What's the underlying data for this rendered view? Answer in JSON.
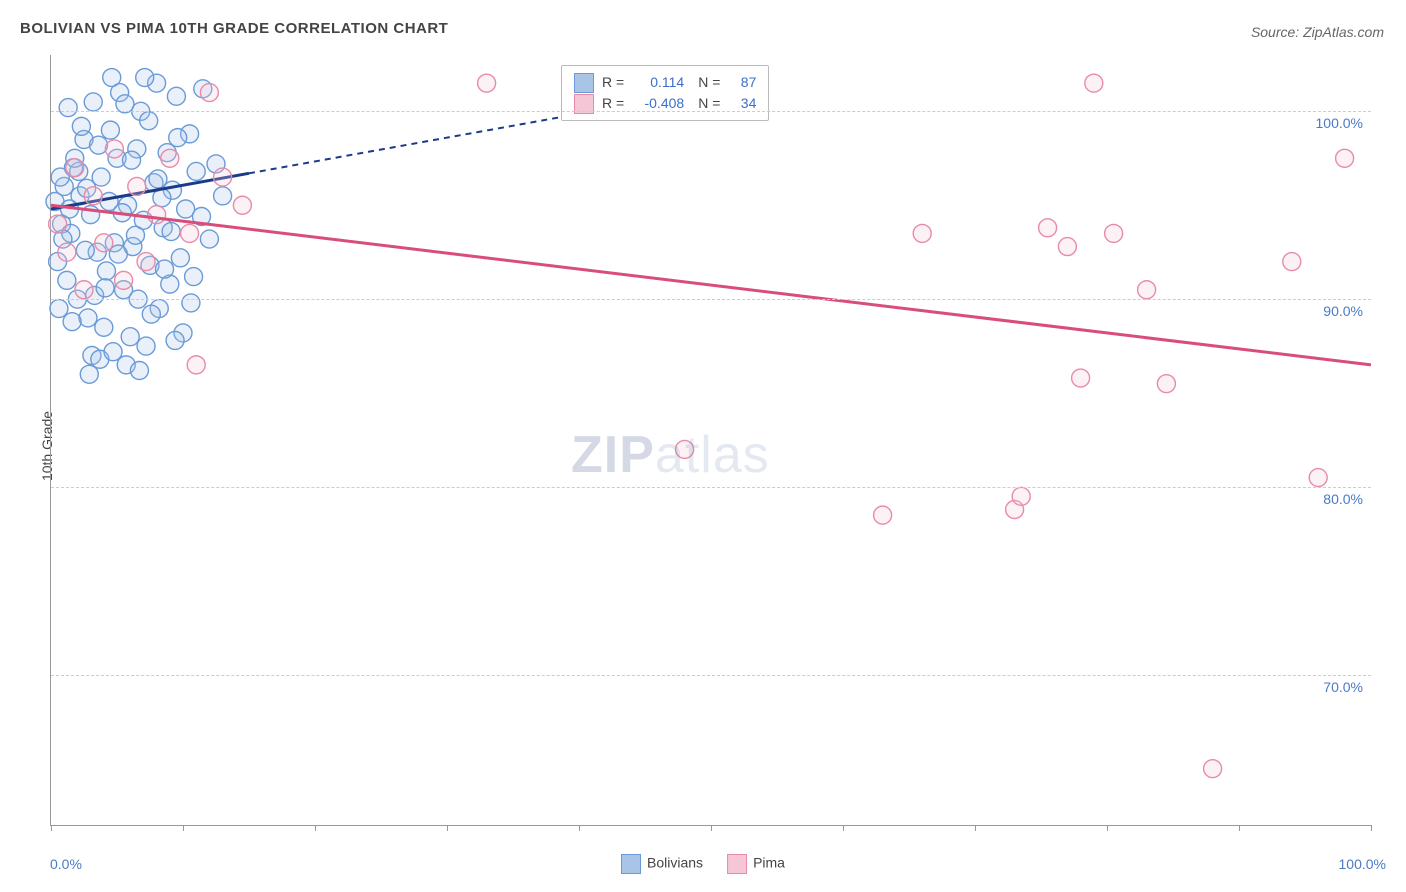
{
  "title": "BOLIVIAN VS PIMA 10TH GRADE CORRELATION CHART",
  "source_label": "Source: ZipAtlas.com",
  "ylabel": "10th Grade",
  "watermark_bold": "ZIP",
  "watermark_light": "atlas",
  "chart": {
    "type": "scatter-correlation",
    "background_color": "#ffffff",
    "grid_color": "#cccccc",
    "axis_color": "#999999",
    "tick_label_color": "#4a7ac7",
    "xlim": [
      0,
      100
    ],
    "ylim": [
      62,
      103
    ],
    "x_ticks": [
      0,
      10,
      20,
      30,
      40,
      50,
      60,
      70,
      80,
      90,
      100
    ],
    "x_axis_min_label": "0.0%",
    "x_axis_max_label": "100.0%",
    "y_ticks": [
      {
        "value": 70,
        "label": "70.0%"
      },
      {
        "value": 80,
        "label": "80.0%"
      },
      {
        "value": 90,
        "label": "90.0%"
      },
      {
        "value": 100,
        "label": "100.0%"
      }
    ],
    "marker_radius": 9,
    "marker_fill_opacity": 0.25,
    "marker_stroke_width": 1.4,
    "trend_line_width": 3,
    "series": [
      {
        "name": "Bolivians",
        "color_fill": "#a8c5e8",
        "color_stroke": "#6a9bd8",
        "trend_color": "#1a3a8a",
        "trend_solid": {
          "x1": 0,
          "y1": 94.8,
          "x2": 15,
          "y2": 96.7
        },
        "trend_dashed": {
          "x1": 15,
          "y1": 96.7,
          "x2": 45,
          "y2": 100.5
        },
        "R": "0.114",
        "N": "87",
        "points": [
          [
            0.3,
            95.2
          ],
          [
            0.5,
            92.0
          ],
          [
            0.8,
            94.0
          ],
          [
            1.0,
            96.0
          ],
          [
            1.2,
            91.0
          ],
          [
            1.5,
            93.5
          ],
          [
            1.7,
            97.0
          ],
          [
            2.0,
            90.0
          ],
          [
            2.2,
            95.5
          ],
          [
            2.5,
            98.5
          ],
          [
            2.8,
            89.0
          ],
          [
            3.0,
            94.5
          ],
          [
            3.2,
            100.5
          ],
          [
            3.5,
            92.5
          ],
          [
            3.8,
            96.5
          ],
          [
            4.0,
            88.5
          ],
          [
            4.2,
            91.5
          ],
          [
            4.5,
            99.0
          ],
          [
            4.8,
            93.0
          ],
          [
            5.0,
            97.5
          ],
          [
            5.2,
            101.0
          ],
          [
            5.5,
            90.5
          ],
          [
            5.8,
            95.0
          ],
          [
            6.0,
            88.0
          ],
          [
            6.2,
            92.8
          ],
          [
            6.5,
            98.0
          ],
          [
            6.8,
            100.0
          ],
          [
            7.0,
            94.2
          ],
          [
            7.2,
            87.5
          ],
          [
            7.5,
            91.8
          ],
          [
            7.8,
            96.2
          ],
          [
            8.0,
            101.5
          ],
          [
            8.2,
            89.5
          ],
          [
            8.5,
            93.8
          ],
          [
            8.8,
            97.8
          ],
          [
            9.0,
            90.8
          ],
          [
            9.2,
            95.8
          ],
          [
            9.5,
            100.8
          ],
          [
            9.8,
            92.2
          ],
          [
            10.0,
            88.2
          ],
          [
            10.2,
            94.8
          ],
          [
            10.5,
            98.8
          ],
          [
            10.8,
            91.2
          ],
          [
            11.0,
            96.8
          ],
          [
            11.5,
            101.2
          ],
          [
            12.0,
            93.2
          ],
          [
            12.5,
            97.2
          ],
          [
            13.0,
            95.5
          ],
          [
            1.3,
            100.2
          ],
          [
            2.1,
            96.8
          ],
          [
            3.3,
            90.2
          ],
          [
            4.6,
            101.8
          ],
          [
            5.4,
            94.6
          ],
          [
            6.6,
            90.0
          ],
          [
            7.4,
            99.5
          ],
          [
            8.4,
            95.4
          ],
          [
            9.4,
            87.8
          ],
          [
            0.6,
            89.5
          ],
          [
            1.8,
            97.5
          ],
          [
            2.6,
            92.6
          ],
          [
            3.6,
            98.2
          ],
          [
            4.4,
            95.2
          ],
          [
            5.6,
            100.4
          ],
          [
            6.4,
            93.4
          ],
          [
            7.6,
            89.2
          ],
          [
            8.6,
            91.6
          ],
          [
            9.6,
            98.6
          ],
          [
            0.9,
            93.2
          ],
          [
            2.3,
            99.2
          ],
          [
            3.1,
            87.0
          ],
          [
            4.1,
            90.6
          ],
          [
            5.1,
            92.4
          ],
          [
            6.1,
            97.4
          ],
          [
            7.1,
            101.8
          ],
          [
            8.1,
            96.4
          ],
          [
            9.1,
            93.6
          ],
          [
            10.6,
            89.8
          ],
          [
            11.4,
            94.4
          ],
          [
            3.7,
            86.8
          ],
          [
            4.7,
            87.2
          ],
          [
            5.7,
            86.5
          ],
          [
            6.7,
            86.2
          ],
          [
            2.9,
            86.0
          ],
          [
            1.6,
            88.8
          ],
          [
            0.7,
            96.5
          ],
          [
            1.4,
            94.8
          ],
          [
            2.7,
            95.9
          ]
        ]
      },
      {
        "name": "Pima",
        "color_fill": "#f5c6d6",
        "color_stroke": "#e88ba8",
        "trend_color": "#d94d7a",
        "trend_solid": {
          "x1": 0,
          "y1": 95.0,
          "x2": 100,
          "y2": 86.5
        },
        "R": "-0.408",
        "N": "34",
        "points": [
          [
            0.5,
            94.0
          ],
          [
            1.2,
            92.5
          ],
          [
            1.8,
            97.0
          ],
          [
            2.5,
            90.5
          ],
          [
            3.2,
            95.5
          ],
          [
            4.0,
            93.0
          ],
          [
            4.8,
            98.0
          ],
          [
            5.5,
            91.0
          ],
          [
            6.5,
            96.0
          ],
          [
            7.2,
            92.0
          ],
          [
            8.0,
            94.5
          ],
          [
            9.0,
            97.5
          ],
          [
            10.5,
            93.5
          ],
          [
            12.0,
            101.0
          ],
          [
            13.0,
            96.5
          ],
          [
            11.0,
            86.5
          ],
          [
            14.5,
            95.0
          ],
          [
            33.0,
            101.5
          ],
          [
            48.0,
            82.0
          ],
          [
            63.0,
            78.5
          ],
          [
            66.0,
            93.5
          ],
          [
            73.0,
            78.8
          ],
          [
            73.5,
            79.5
          ],
          [
            75.5,
            93.8
          ],
          [
            77.0,
            92.8
          ],
          [
            78.0,
            85.8
          ],
          [
            79.0,
            101.5
          ],
          [
            80.5,
            93.5
          ],
          [
            83.0,
            90.5
          ],
          [
            84.5,
            85.5
          ],
          [
            88.0,
            65.0
          ],
          [
            96.0,
            80.5
          ],
          [
            98.0,
            97.5
          ],
          [
            94.0,
            92.0
          ]
        ]
      }
    ]
  },
  "stats_box": {
    "rows": [
      {
        "swatch_fill": "#a8c5e8",
        "swatch_stroke": "#6a9bd8",
        "r_label": "R =",
        "r_value": "0.114",
        "n_label": "N =",
        "n_value": "87"
      },
      {
        "swatch_fill": "#f5c6d6",
        "swatch_stroke": "#e88ba8",
        "r_label": "R =",
        "r_value": "-0.408",
        "n_label": "N =",
        "n_value": "34"
      }
    ]
  },
  "bottom_legend": [
    {
      "fill": "#a8c5e8",
      "stroke": "#6a9bd8",
      "label": "Bolivians"
    },
    {
      "fill": "#f5c6d6",
      "stroke": "#e88ba8",
      "label": "Pima"
    }
  ]
}
